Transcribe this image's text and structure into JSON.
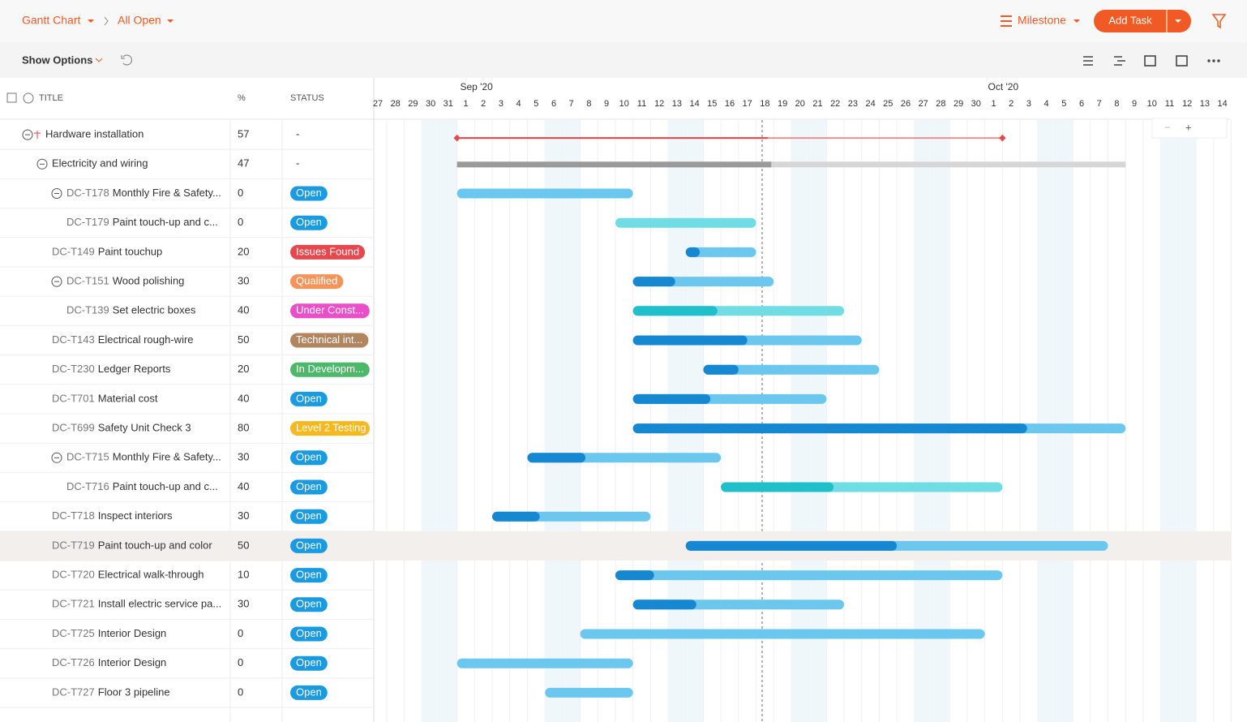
{
  "header": {
    "view": "Gantt Chart",
    "filter": "All Open",
    "milestone": "Milestone",
    "add_task": "Add Task",
    "show_options": "Show Options"
  },
  "columns": {
    "title": "TITLE",
    "percent": "%",
    "status": "STATUS"
  },
  "timeline": {
    "months": [
      "Sep '20",
      "Oct '20"
    ],
    "days": [
      27,
      28,
      29,
      30,
      31,
      1,
      2,
      3,
      4,
      5,
      6,
      7,
      8,
      9,
      10,
      11,
      12,
      13,
      14,
      15,
      16,
      17,
      18,
      19,
      20,
      21,
      22,
      23,
      24,
      25,
      26,
      27,
      28,
      29,
      30,
      1,
      2,
      3,
      4,
      5,
      6,
      7,
      8,
      9,
      10,
      11,
      12,
      13,
      14
    ]
  },
  "tasks": [
    {
      "id": "",
      "name": "Hardware installation",
      "percent": 57,
      "status": "-",
      "status_color": null,
      "color": "#e5484d",
      "start": "2020-09-01",
      "end": "2020-10-01"
    },
    {
      "id": "",
      "name": "Electricity and wiring",
      "percent": 47,
      "status": "-",
      "status_color": null,
      "color": "#9a9a9a",
      "start": "2020-09-01",
      "end": "2020-10-08"
    },
    {
      "id": "DC-T178",
      "name": "Monthly Fire & Safety...",
      "percent": 0,
      "status": "Open",
      "status_color": "#1a9be0",
      "color": "#6cc7ef",
      "start": "2020-09-01",
      "end": "2020-09-10"
    },
    {
      "id": "DC-T179",
      "name": "Paint touch-up and c...",
      "percent": 0,
      "status": "Open",
      "status_color": "#1a9be0",
      "color": "#6fdde3",
      "start": "2020-09-10",
      "end": "2020-09-17"
    },
    {
      "id": "DC-T149",
      "name": "Paint touchup",
      "percent": 20,
      "status": "Issues Found",
      "status_color": "#e5484d",
      "color": "#6cc7ef",
      "start": "2020-09-14",
      "end": "2020-09-17"
    },
    {
      "id": "DC-T151",
      "name": "Wood polishing",
      "percent": 30,
      "status": "Qualified",
      "status_color": "#f4945a",
      "color": "#6cc7ef",
      "start": "2020-09-11",
      "end": "2020-09-18"
    },
    {
      "id": "DC-T139",
      "name": "Set electric boxes",
      "percent": 40,
      "status": "Under Const...",
      "status_color": "#e94fc9",
      "color": "#6fdde3",
      "start": "2020-09-11",
      "end": "2020-09-22"
    },
    {
      "id": "DC-T143",
      "name": "Electrical rough-wire",
      "percent": 50,
      "status": "Technical int...",
      "status_color": "#b08560",
      "color": "#6cc7ef",
      "start": "2020-09-11",
      "end": "2020-09-23"
    },
    {
      "id": "DC-T230",
      "name": "Ledger Reports",
      "percent": 20,
      "status": "In Developm...",
      "status_color": "#4cb86a",
      "color": "#6cc7ef",
      "start": "2020-09-15",
      "end": "2020-09-24"
    },
    {
      "id": "DC-T701",
      "name": "Material cost",
      "percent": 40,
      "status": "Open",
      "status_color": "#1a9be0",
      "color": "#6cc7ef",
      "start": "2020-09-11",
      "end": "2020-09-21"
    },
    {
      "id": "DC-T699",
      "name": "Safety Unit Check 3",
      "percent": 80,
      "status": "Level 2 Testing",
      "status_color": "#f6b81e",
      "color": "#6cc7ef",
      "start": "2020-09-11",
      "end": "2020-10-08"
    },
    {
      "id": "DC-T715",
      "name": "Monthly Fire & Safety...",
      "percent": 30,
      "status": "Open",
      "status_color": "#1a9be0",
      "color": "#6cc7ef",
      "start": "2020-09-05",
      "end": "2020-09-15"
    },
    {
      "id": "DC-T716",
      "name": "Paint touch-up and c...",
      "percent": 40,
      "status": "Open",
      "status_color": "#1a9be0",
      "color": "#6fdde3",
      "start": "2020-09-16",
      "end": "2020-10-01"
    },
    {
      "id": "DC-T718",
      "name": "Inspect interiors",
      "percent": 30,
      "status": "Open",
      "status_color": "#1a9be0",
      "color": "#6cc7ef",
      "start": "2020-09-03",
      "end": "2020-09-11"
    },
    {
      "id": "DC-T719",
      "name": "Paint touch-up and color",
      "percent": 50,
      "status": "Open",
      "status_color": "#1a9be0",
      "color": "#6cc7ef",
      "start": "2020-09-14",
      "end": "2020-10-07"
    },
    {
      "id": "DC-T720",
      "name": "Electrical walk-through",
      "percent": 10,
      "status": "Open",
      "status_color": "#1a9be0",
      "color": "#6cc7ef",
      "start": "2020-09-10",
      "end": "2020-10-01"
    },
    {
      "id": "DC-T721",
      "name": "Install electric service pa...",
      "percent": 30,
      "status": "Open",
      "status_color": "#1a9be0",
      "color": "#6cc7ef",
      "start": "2020-09-11",
      "end": "2020-09-22"
    },
    {
      "id": "DC-T725",
      "name": "Interior Design",
      "percent": 0,
      "status": "Open",
      "status_color": "#1a9be0",
      "color": "#6cc7ef",
      "start": "2020-09-08",
      "end": "2020-09-30"
    },
    {
      "id": "DC-T726",
      "name": "Interior Design",
      "percent": 0,
      "status": "Open",
      "status_color": "#1a9be0",
      "color": "#6cc7ef",
      "start": "2020-09-01",
      "end": "2020-09-10"
    },
    {
      "id": "DC-T727",
      "name": "Floor 3 pipeline",
      "percent": 0,
      "status": "Open",
      "status_color": "#1a9be0",
      "color": "#6cc7ef",
      "start": "2020-09-06",
      "end": "2020-09-10"
    }
  ]
}
